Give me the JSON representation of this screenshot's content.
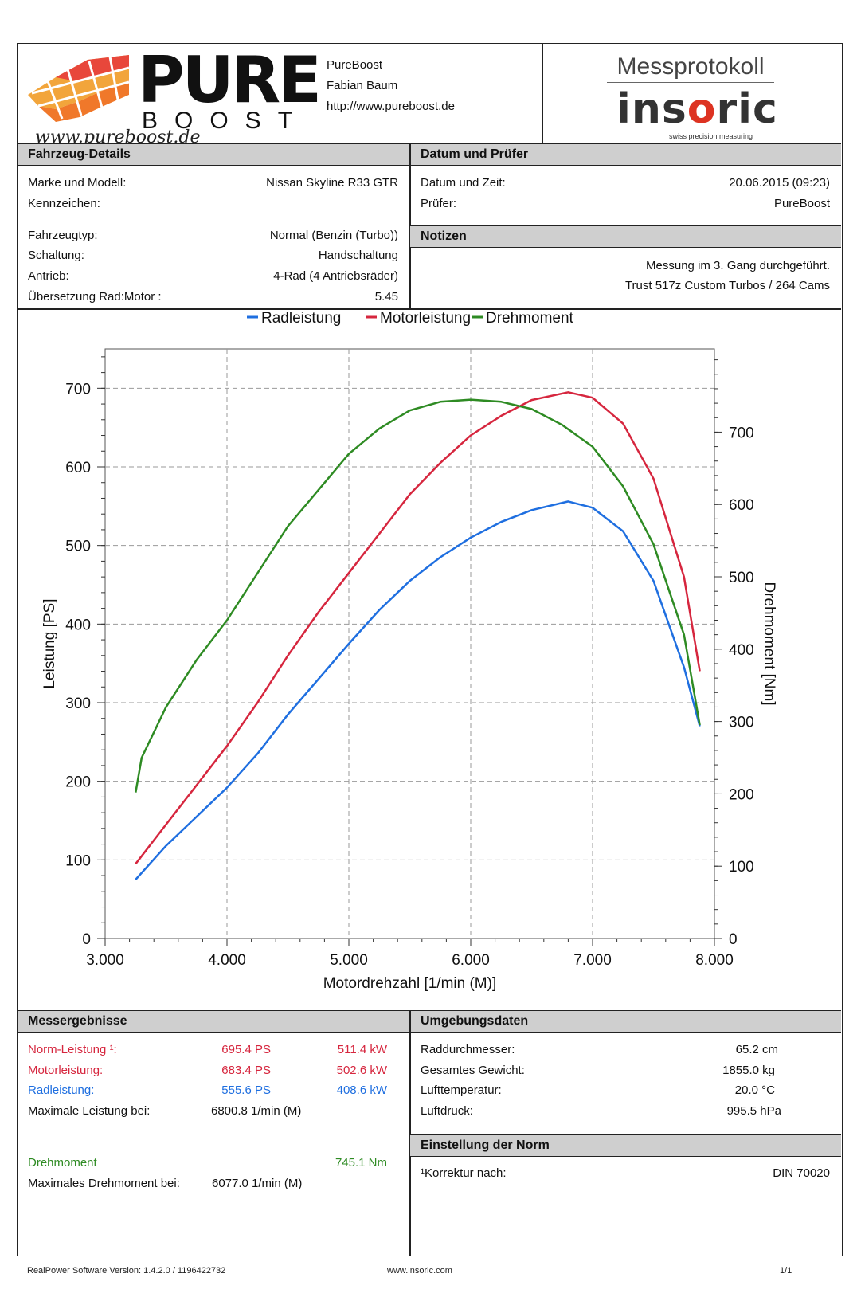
{
  "header": {
    "brand": "PURE",
    "brand_sub": "BOOST",
    "brand_script": "www.pureboost.de",
    "company_lines": [
      "PureBoost",
      "Fabian Baum",
      "http://www.pureboost.de"
    ],
    "protocol_title": "Messprotokoll",
    "insoric_logo": "insoric",
    "insoric_tagline": "swiss precision measuring"
  },
  "vehicle": {
    "title": "Fahrzeug-Details",
    "rows": [
      {
        "label": "Marke und Modell:",
        "value": "Nissan Skyline R33 GTR"
      },
      {
        "label": "Kennzeichen:",
        "value": ""
      },
      {
        "label": "Fahrzeugtyp:",
        "value": "Normal (Benzin (Turbo))"
      },
      {
        "label": "Schaltung:",
        "value": "Handschaltung"
      },
      {
        "label": "Antrieb:",
        "value": "4-Rad (4 Antriebsräder)"
      },
      {
        "label": "Übersetzung Rad:Motor :",
        "value": "5.45"
      }
    ]
  },
  "date": {
    "title": "Datum und Prüfer",
    "rows": [
      {
        "label": "Datum und Zeit:",
        "value": "20.06.2015 (09:23)"
      },
      {
        "label": "Prüfer:",
        "value": "PureBoost"
      }
    ]
  },
  "notes": {
    "title": "Notizen",
    "lines": [
      "Messung im 3. Gang durchgeführt.",
      "Trust 517z Custom Turbos / 264 Cams"
    ]
  },
  "chart_data": {
    "type": "line",
    "xlabel": "Motordrehzahl [1/min (M)]",
    "ylabel": "Leistung [PS]",
    "y2label": "Drehmoment [Nm]",
    "xlim": [
      3000,
      8000
    ],
    "ylim": [
      0,
      750
    ],
    "y2lim": [
      0,
      815
    ],
    "x_ticks": [
      "3.000",
      "4.000",
      "5.000",
      "6.000",
      "7.000",
      "8.000"
    ],
    "y_ticks": [
      "0",
      "100",
      "200",
      "300",
      "400",
      "500",
      "600",
      "700"
    ],
    "y2_ticks": [
      "0",
      "100",
      "200",
      "300",
      "400",
      "500",
      "600",
      "700"
    ],
    "legend": [
      "Radleistung",
      "Motorleistung",
      "Drehmoment"
    ],
    "colors": {
      "Radleistung": "#1f6fe0",
      "Motorleistung": "#d6263e",
      "Drehmoment": "#2e8b23"
    },
    "series": [
      {
        "name": "Radleistung",
        "axis": "left",
        "x": [
          3250,
          3500,
          3750,
          4000,
          4250,
          4500,
          4750,
          5000,
          5250,
          5500,
          5750,
          6000,
          6250,
          6500,
          6800,
          7000,
          7250,
          7500,
          7750,
          7880
        ],
        "y": [
          75,
          118,
          155,
          192,
          235,
          285,
          330,
          375,
          418,
          455,
          485,
          510,
          530,
          545,
          556,
          548,
          518,
          455,
          345,
          270
        ]
      },
      {
        "name": "Motorleistung",
        "axis": "left",
        "x": [
          3250,
          3500,
          3750,
          4000,
          4250,
          4500,
          4750,
          5000,
          5250,
          5500,
          5750,
          6000,
          6250,
          6500,
          6800,
          7000,
          7250,
          7500,
          7750,
          7880
        ],
        "y": [
          95,
          145,
          195,
          245,
          300,
          360,
          415,
          465,
          515,
          565,
          605,
          640,
          665,
          685,
          695,
          688,
          655,
          585,
          460,
          340
        ]
      },
      {
        "name": "Drehmoment",
        "axis": "right",
        "x": [
          3250,
          3300,
          3500,
          3750,
          4000,
          4250,
          4500,
          4750,
          5000,
          5250,
          5500,
          5750,
          6000,
          6250,
          6500,
          6750,
          7000,
          7250,
          7500,
          7750,
          7880
        ],
        "y": [
          202,
          250,
          320,
          385,
          440,
          505,
          570,
          620,
          670,
          705,
          730,
          742,
          745,
          742,
          732,
          710,
          680,
          625,
          545,
          420,
          295
        ]
      }
    ]
  },
  "results": {
    "title": "Messergebnisse",
    "rows": [
      {
        "label": "Norm-Leistung ¹:",
        "ps": "695.4 PS",
        "kw": "511.4 kW",
        "color": "red"
      },
      {
        "label": "Motorleistung:",
        "ps": "683.4 PS",
        "kw": "502.6 kW",
        "color": "red"
      },
      {
        "label": "Radleistung:",
        "ps": "555.6 PS",
        "kw": "408.6 kW",
        "color": "blue"
      }
    ],
    "max_power_label": "Maximale Leistung bei:",
    "max_power_value": "6800.8 1/min (M)",
    "torque_label": "Drehmoment",
    "torque_value": "745.1 Nm",
    "max_torque_label": "Maximales Drehmoment bei:",
    "max_torque_value": "6077.0 1/min (M)"
  },
  "environment": {
    "title": "Umgebungsdaten",
    "rows": [
      {
        "label": "Raddurchmesser:",
        "value": "65.2 cm"
      },
      {
        "label": "Gesamtes Gewicht:",
        "value": "1855.0 kg"
      },
      {
        "label": "Lufttemperatur:",
        "value": "20.0 °C"
      },
      {
        "label": "Luftdruck:",
        "value": "995.5 hPa"
      }
    ]
  },
  "norm": {
    "title": "Einstellung der Norm",
    "label": "¹Korrektur nach:",
    "value": "DIN 70020"
  },
  "footer": {
    "version": "RealPower Software Version: 1.4.2.0 / 1196422732",
    "url": "www.insoric.com",
    "page": "1/1"
  }
}
